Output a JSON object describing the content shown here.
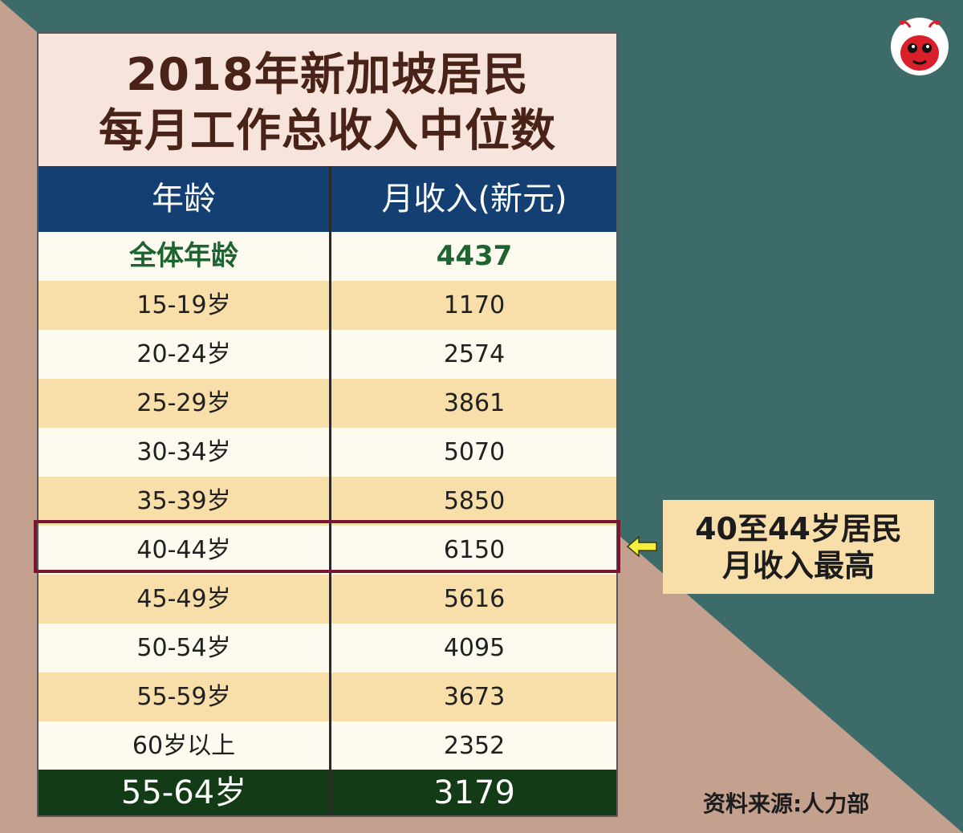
{
  "title": {
    "line1": "2018年新加坡居民",
    "line2": "每月工作总收入中位数"
  },
  "table": {
    "headers": {
      "age": "年龄",
      "income": "月收入(新元)"
    },
    "all_ages": {
      "age": "全体年龄",
      "income": "4437"
    },
    "rows": [
      {
        "age": "15-19岁",
        "income": "1170"
      },
      {
        "age": "20-24岁",
        "income": "2574"
      },
      {
        "age": "25-29岁",
        "income": "3861"
      },
      {
        "age": "30-34岁",
        "income": "5070"
      },
      {
        "age": "35-39岁",
        "income": "5850"
      },
      {
        "age": "40-44岁",
        "income": "6150"
      },
      {
        "age": "45-49岁",
        "income": "5616"
      },
      {
        "age": "50-54岁",
        "income": "4095"
      },
      {
        "age": "55-59岁",
        "income": "3673"
      },
      {
        "age": "60岁以上",
        "income": "2352"
      }
    ],
    "footer": {
      "age": "55-64岁",
      "income": "3179"
    }
  },
  "callout": {
    "line1": "40至44岁居民",
    "line2": "月收入最高"
  },
  "source": "资料来源:人力部",
  "colors": {
    "background_teal": "#3d6b6a",
    "background_tan": "#c4a08f",
    "header_blue": "#133f73",
    "footer_green": "#133b16",
    "highlight_border": "#7a1630",
    "row_stripe": "#f8dea9",
    "title_text": "#4a2318",
    "all_ages_text": "#1e6430",
    "arrow_yellow": "#f4ef3c"
  },
  "icons": {
    "logo": "ant-mascot-icon",
    "arrow": "arrow-left-icon"
  }
}
